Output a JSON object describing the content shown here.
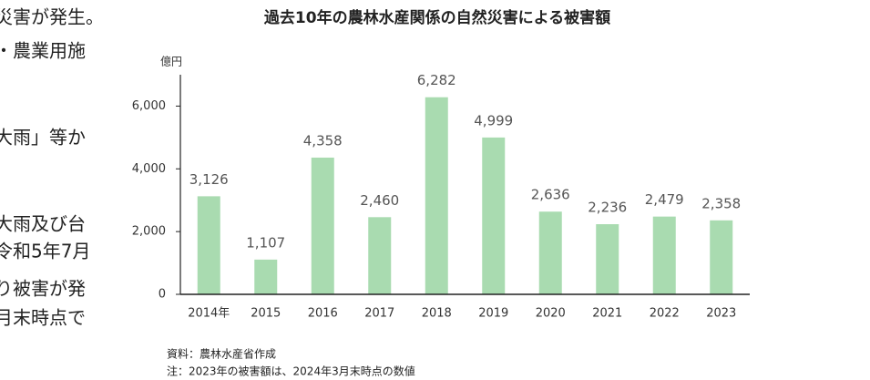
{
  "side_text": [
    "災害が発生。",
    "・農業用施",
    "大雨」等か",
    "大雨及び台",
    "令和5年7月",
    "り被害が発",
    "月末時点で"
  ],
  "chart_data": {
    "type": "bar",
    "title": "過去10年の農林水産関係の自然災害による被害額",
    "unit": "億円",
    "categories": [
      "2014年",
      "2015",
      "2016",
      "2017",
      "2018",
      "2019",
      "2020",
      "2021",
      "2022",
      "2023"
    ],
    "values": [
      3126,
      1107,
      4358,
      2460,
      6282,
      4999,
      2636,
      2236,
      2479,
      2358
    ],
    "value_labels": [
      "3,126",
      "1,107",
      "4,358",
      "2,460",
      "6,282",
      "4,999",
      "2,636",
      "2,236",
      "2,479",
      "2,358"
    ],
    "color": "#a9dbb0",
    "ylim": [
      0,
      7000
    ],
    "yticks": [
      0,
      {
        "value": 2000,
        "label": "2,000"
      },
      {
        "value": 4000,
        "label": "4,000"
      },
      {
        "value": 6000,
        "label": "6,000"
      }
    ],
    "grid": false
  },
  "notes": [
    "資料：農林水産省作成",
    "注：2023年の被害額は、2024年3月末時点の数値"
  ]
}
